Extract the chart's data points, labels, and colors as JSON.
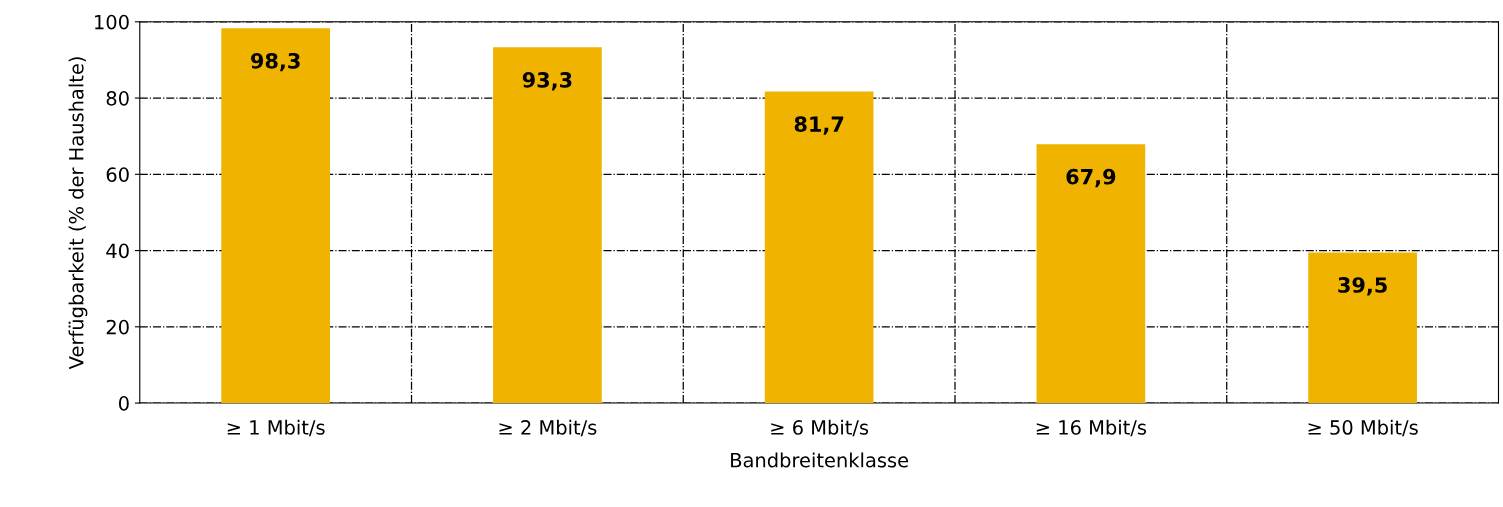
{
  "chart_data": {
    "type": "bar",
    "xlabel": "Bandbreitenklasse",
    "ylabel": "Verfügbarkeit (% der Haushalte)",
    "categories": [
      "≥ 1 Mbit/s",
      "≥ 2 Mbit/s",
      "≥ 6 Mbit/s",
      "≥ 16 Mbit/s",
      "≥ 50 Mbit/s"
    ],
    "values": [
      98.3,
      93.3,
      81.7,
      67.9,
      39.5
    ],
    "value_labels": [
      "98,3",
      "93,3",
      "81,7",
      "67,9",
      "39,5"
    ],
    "color": "#efb300",
    "ylim": [
      0,
      100
    ],
    "yticks": [
      0,
      20,
      40,
      60,
      80,
      100
    ],
    "grid": true,
    "legend": false
  }
}
